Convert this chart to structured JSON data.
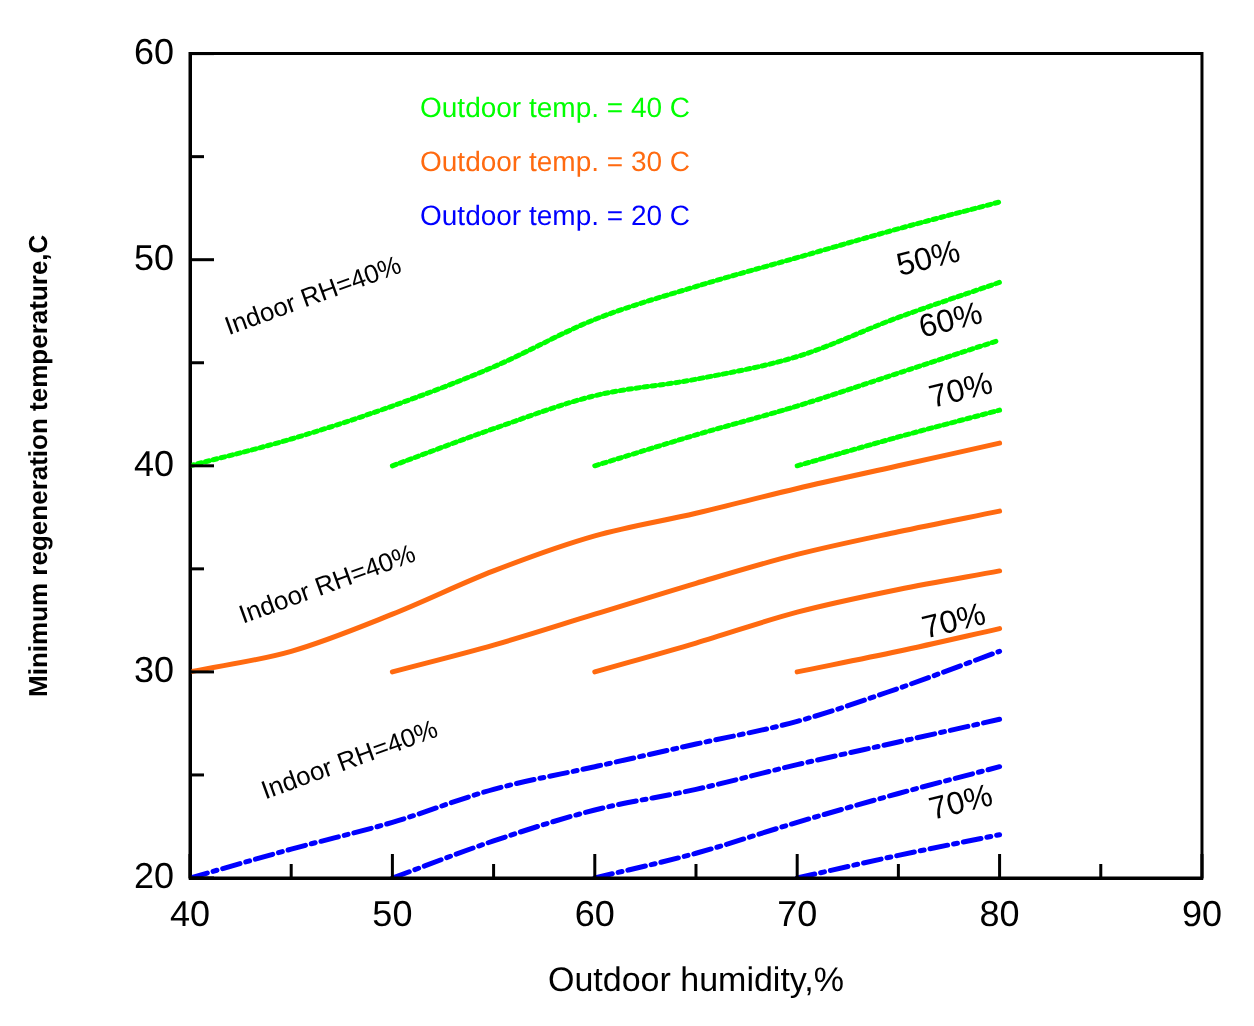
{
  "chart_data": {
    "type": "line",
    "xlabel": "Outdoor humidity,%",
    "ylabel": "Minimum regeneration temperature,C",
    "xlim": [
      40,
      90
    ],
    "ylim": [
      20,
      60
    ],
    "xticks": [
      40,
      {
        "value": 45,
        "label": null
      },
      50,
      {
        "value": 55,
        "label": null
      },
      60,
      {
        "value": 65,
        "label": null
      },
      70,
      {
        "value": 75,
        "label": null
      },
      80,
      {
        "value": 85,
        "label": null
      },
      90
    ],
    "yticks": [
      20,
      {
        "value": 25,
        "label": null
      },
      30,
      {
        "value": 35,
        "label": null
      },
      40,
      {
        "value": 45,
        "label": null
      },
      50,
      {
        "value": 55,
        "label": null
      },
      60
    ],
    "grid": false,
    "legend": "top left",
    "marker": "none",
    "series": [
      {
        "name": "Outdoor temp. = 40 C",
        "color": "#00ff00",
        "line_style": "dotted",
        "x": [
          40,
          45,
          50,
          55,
          60,
          65,
          70,
          75,
          80
        ],
        "values": [
          40,
          41.3,
          42.9,
          44.8,
          47.1,
          48.7,
          50.1,
          51.5,
          52.8
        ]
      },
      {
        "color": "#00ff00",
        "line_style": "dotted",
        "x": [
          50,
          55,
          60,
          65,
          70,
          75,
          80
        ],
        "values": [
          40,
          41.8,
          43.4,
          44.2,
          45.3,
          47.2,
          48.9
        ]
      },
      {
        "color": "#00ff00",
        "line_style": "dotted",
        "x": [
          60,
          65,
          70,
          75,
          80
        ],
        "values": [
          40,
          41.5,
          42.9,
          44.5,
          46.1
        ]
      },
      {
        "color": "#00ff00",
        "line_style": "dotted",
        "x": [
          70,
          75,
          80
        ],
        "values": [
          40,
          41.4,
          42.7
        ]
      },
      {
        "name": "Outdoor temp. = 30 C",
        "color": "#ff6a10",
        "line_style": "solid",
        "x": [
          40,
          45,
          50,
          55,
          60,
          65,
          70,
          75,
          80
        ],
        "values": [
          30,
          31,
          32.8,
          34.9,
          36.6,
          37.7,
          38.9,
          40,
          41.1
        ]
      },
      {
        "color": "#ff6a10",
        "line_style": "solid",
        "x": [
          50,
          55,
          60,
          65,
          70,
          75,
          80
        ],
        "values": [
          30,
          31.3,
          32.8,
          34.3,
          35.7,
          36.8,
          37.8
        ]
      },
      {
        "color": "#ff6a10",
        "line_style": "solid",
        "x": [
          60,
          65,
          70,
          75,
          80
        ],
        "values": [
          30,
          31.4,
          32.9,
          34,
          34.9
        ]
      },
      {
        "color": "#ff6a10",
        "line_style": "solid",
        "x": [
          70,
          75,
          80
        ],
        "values": [
          30,
          31,
          32.1
        ]
      },
      {
        "name": "Outdoor temp. = 20 C",
        "color": "#0000ff",
        "line_style": "dashed",
        "x": [
          40,
          45,
          50,
          55,
          60,
          65,
          70,
          75,
          80
        ],
        "values": [
          20,
          21.4,
          22.7,
          24.3,
          25.4,
          26.5,
          27.6,
          29.2,
          31
        ]
      },
      {
        "color": "#0000ff",
        "line_style": "dashed",
        "x": [
          50,
          55,
          60,
          65,
          70,
          75,
          80
        ],
        "values": [
          20,
          21.8,
          23.3,
          24.3,
          25.5,
          26.6,
          27.7
        ]
      },
      {
        "color": "#0000ff",
        "line_style": "dashed",
        "x": [
          60,
          65,
          70,
          75,
          80
        ],
        "values": [
          20,
          21.2,
          22.7,
          24.1,
          25.4
        ]
      },
      {
        "color": "#0000ff",
        "line_style": "dashed",
        "x": [
          70,
          75,
          80
        ],
        "values": [
          20,
          21.1,
          22.1
        ]
      }
    ],
    "annotations": [
      "Indoor RH=40%",
      "50%",
      "60%",
      "70%",
      "Indoor RH=40%",
      "70%",
      "Indoor RH=40%",
      "70%"
    ]
  }
}
